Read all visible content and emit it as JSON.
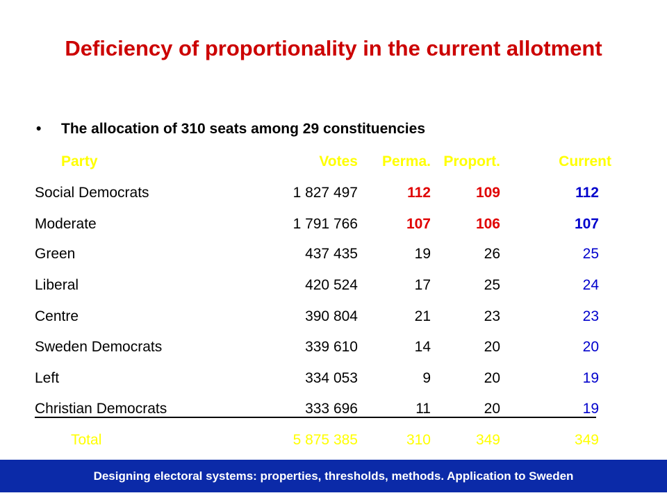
{
  "title": "Deficiency of proportionality in the current allotment",
  "bullet": {
    "symbol": "•",
    "text": "The allocation of 310 seats among 29 constituencies"
  },
  "table": {
    "headers": {
      "party": "Party",
      "votes": "Votes",
      "perma": "Perma.",
      "proport": "Proport.",
      "current": "Current"
    },
    "rows": [
      {
        "party": "Social Democrats",
        "votes": "1 827 497",
        "perma": "112",
        "proport": "109",
        "current": "112"
      },
      {
        "party": "Moderate",
        "votes": "1 791 766",
        "perma": "107",
        "proport": "106",
        "current": "107"
      },
      {
        "party": "Green",
        "votes": "437 435",
        "perma": "19",
        "proport": "26",
        "current": "25"
      },
      {
        "party": "Liberal",
        "votes": "420 524",
        "perma": "17",
        "proport": "25",
        "current": "24"
      },
      {
        "party": "Centre",
        "votes": "390 804",
        "perma": "21",
        "proport": "23",
        "current": "23"
      },
      {
        "party": "Sweden Democrats",
        "votes": "339 610",
        "perma": "14",
        "proport": "20",
        "current": "20"
      },
      {
        "party": "Left",
        "votes": "334 053",
        "perma": "9",
        "proport": "20",
        "current": "19"
      },
      {
        "party": "Christian Democrats",
        "votes": "333 696",
        "perma": "11",
        "proport": "20",
        "current": "19"
      }
    ],
    "total": {
      "party": "Total",
      "votes": "5 875 385",
      "perma": "310",
      "proport": "349",
      "current": "349"
    }
  },
  "footer": "Designing electoral systems: properties, thresholds, methods. Application to Sweden",
  "colors": {
    "title": "#cc0000",
    "header": "#ffff00",
    "highlight_red": "#e00000",
    "current_blue": "#0000cc",
    "footer_band": "#0b2aa8"
  }
}
